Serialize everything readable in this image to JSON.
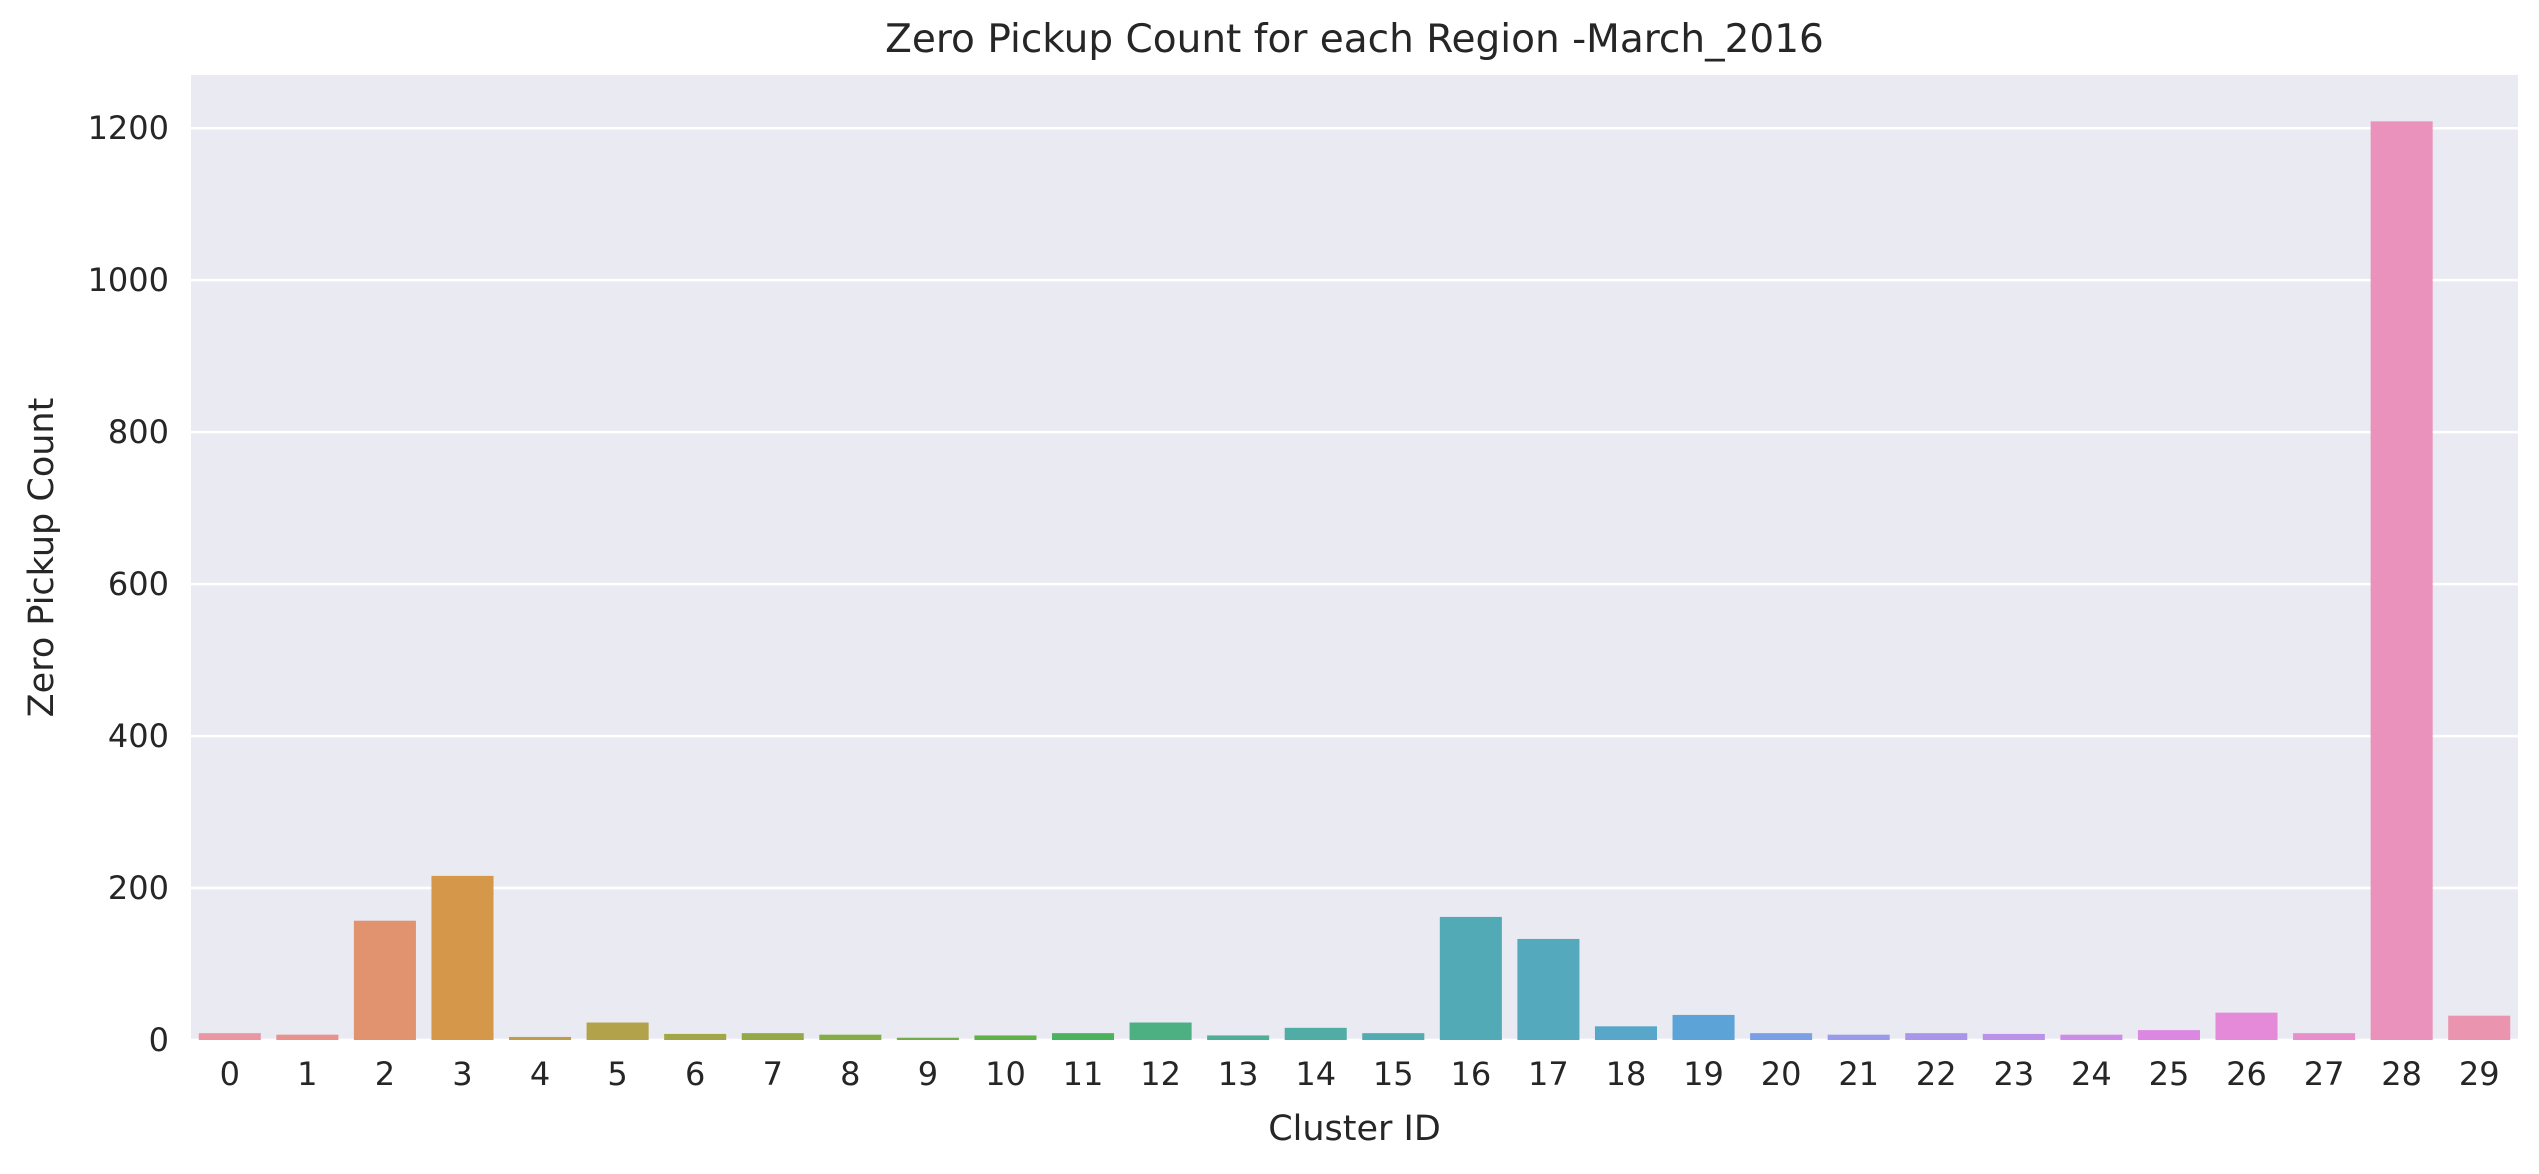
{
  "chart_data": {
    "type": "bar",
    "title": "Zero Pickup Count for each Region -March_2016",
    "xlabel": "Cluster ID",
    "ylabel": "Zero Pickup Count",
    "ylim": [
      0,
      1270
    ],
    "yticks": [
      0,
      200,
      400,
      600,
      800,
      1000,
      1200
    ],
    "grid": true,
    "categories": [
      "0",
      "1",
      "2",
      "3",
      "4",
      "5",
      "6",
      "7",
      "8",
      "9",
      "10",
      "11",
      "12",
      "13",
      "14",
      "15",
      "16",
      "17",
      "18",
      "19",
      "20",
      "21",
      "22",
      "23",
      "24",
      "25",
      "26",
      "27",
      "28",
      "29"
    ],
    "values": [
      9,
      7,
      157,
      216,
      4,
      23,
      8,
      9,
      7,
      3,
      6,
      9,
      23,
      6,
      16,
      9,
      162,
      133,
      18,
      33,
      9,
      7,
      9,
      8,
      7,
      13,
      36,
      9,
      1209,
      32
    ],
    "colors": [
      "#ea96a3",
      "#e7938b",
      "#e1926f",
      "#d5974a",
      "#c19d49",
      "#b2a249",
      "#a2a647",
      "#93a946",
      "#85ad46",
      "#73af48",
      "#5fb14a",
      "#4bb25d",
      "#4cb083",
      "#4eae98",
      "#4fada6",
      "#50abb2",
      "#52aab7",
      "#55a9bd",
      "#58a6c9",
      "#5ca3d7",
      "#79a0e4",
      "#979be9",
      "#a996ea",
      "#bb91ea",
      "#cd8ce8",
      "#dc88e2",
      "#e58ad8",
      "#e88ecb",
      "#ea91bc",
      "#eb94b0"
    ],
    "background": "#eaeaf2",
    "grid_color": "#ffffff"
  }
}
